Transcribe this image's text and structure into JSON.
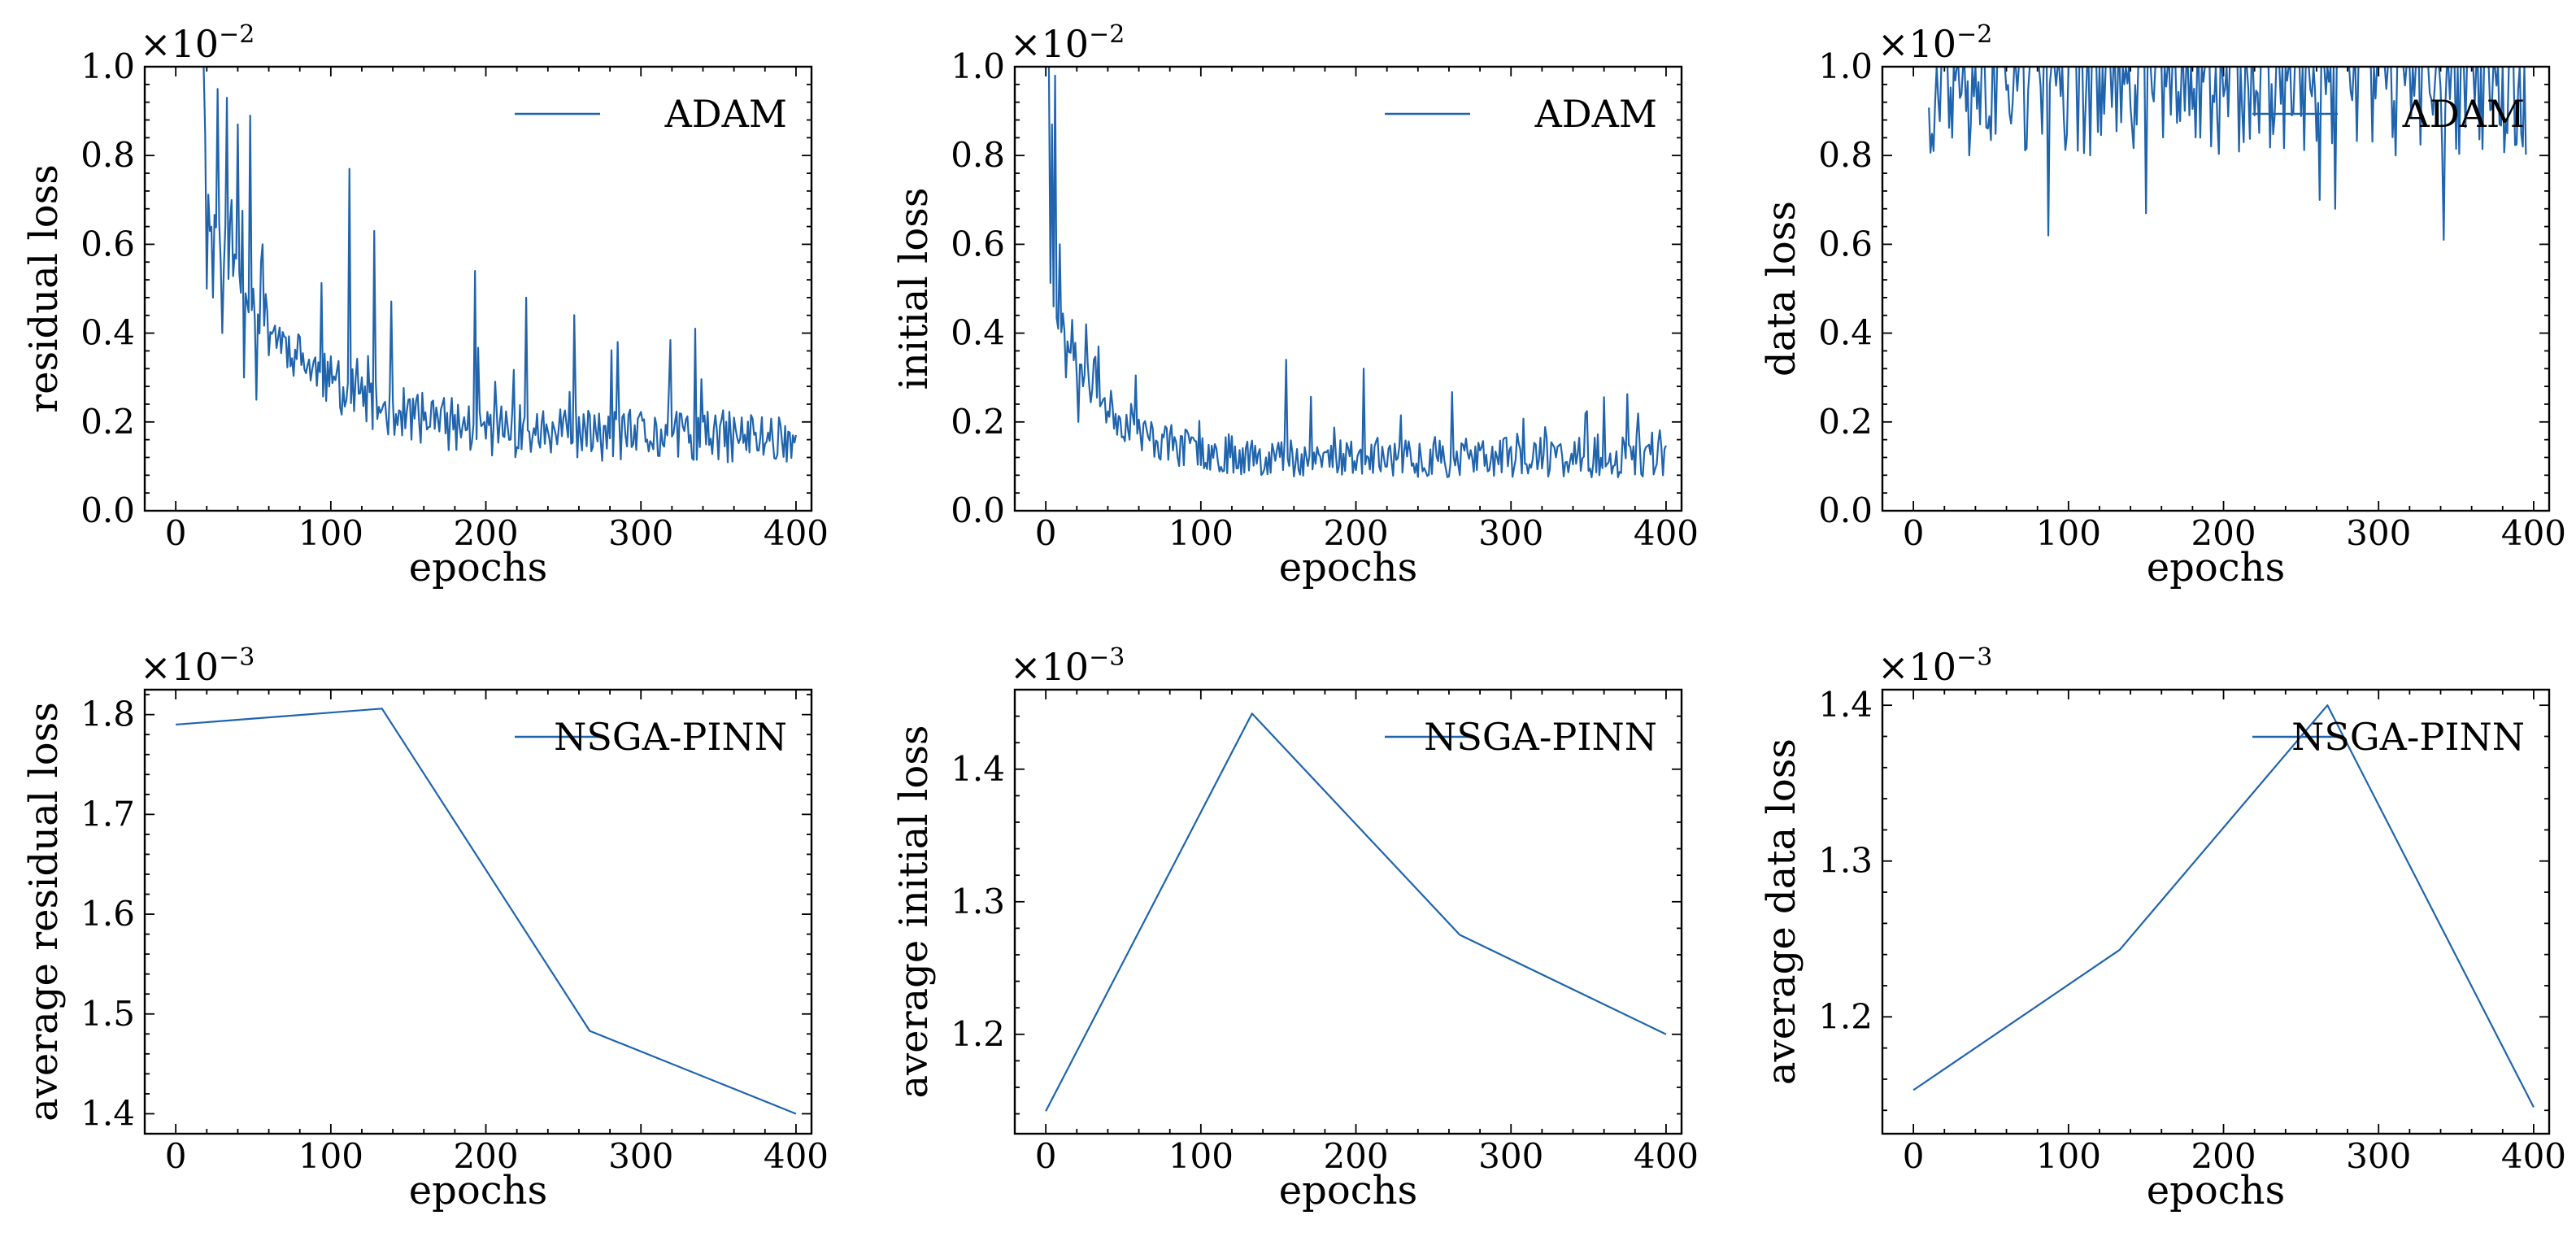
{
  "chart_data": [
    {
      "type": "line",
      "panel": "top-left",
      "xlabel": "epochs",
      "ylabel": "residual loss",
      "multiplier": {
        "base": "×10",
        "exp": "−2"
      },
      "xlim": [
        -20,
        410
      ],
      "ylim": [
        0.0,
        1.0
      ],
      "xticks": [
        0,
        100,
        200,
        300,
        400
      ],
      "yticks": [
        0.0,
        0.2,
        0.4,
        0.6,
        0.8,
        1.0
      ],
      "ytick_labels": [
        "0.0",
        "0.2",
        "0.4",
        "0.6",
        "0.8",
        "1.0"
      ],
      "legend": {
        "label": "ADAM",
        "loc": "upper-right"
      },
      "color": "#1f64ad",
      "series": {
        "name": "ADAM",
        "generator": "noisy-decay",
        "x_start": 18,
        "x_end": 400,
        "seed": 11,
        "baseline": 0.165,
        "amplitude": 0.55,
        "decay": 55,
        "noise": 0.06,
        "spike_rate": 0.08,
        "spike_size": 0.22,
        "y_min": 0.05,
        "y_max": 1.0,
        "overrides": [
          [
            18,
            1.0
          ],
          [
            20,
            0.5
          ],
          [
            22,
            0.63
          ],
          [
            24,
            0.48
          ],
          [
            27,
            0.95
          ],
          [
            30,
            0.4
          ],
          [
            33,
            0.93
          ],
          [
            36,
            0.7
          ],
          [
            40,
            0.87
          ],
          [
            44,
            0.3
          ],
          [
            48,
            0.89
          ],
          [
            52,
            0.25
          ],
          [
            56,
            0.6
          ],
          [
            60,
            0.35
          ],
          [
            112,
            0.77
          ],
          [
            128,
            0.63
          ],
          [
            193,
            0.54
          ],
          [
            226,
            0.48
          ],
          [
            285,
            0.38
          ],
          [
            335,
            0.41
          ]
        ]
      }
    },
    {
      "type": "line",
      "panel": "top-middle",
      "xlabel": "epochs",
      "ylabel": "initial loss",
      "multiplier": {
        "base": "×10",
        "exp": "−2"
      },
      "xlim": [
        -20,
        410
      ],
      "ylim": [
        0.0,
        1.0
      ],
      "xticks": [
        0,
        100,
        200,
        300,
        400
      ],
      "yticks": [
        0.0,
        0.2,
        0.4,
        0.6,
        0.8,
        1.0
      ],
      "ytick_labels": [
        "0.0",
        "0.2",
        "0.4",
        "0.6",
        "0.8",
        "1.0"
      ],
      "legend": {
        "label": "ADAM",
        "loc": "upper-right"
      },
      "color": "#1f64ad",
      "series": {
        "name": "ADAM",
        "generator": "noisy-decay",
        "x_start": 2,
        "x_end": 400,
        "seed": 23,
        "baseline": 0.12,
        "amplitude": 0.4,
        "decay": 30,
        "noise": 0.045,
        "spike_rate": 0.06,
        "spike_size": 0.12,
        "y_min": 0.03,
        "y_max": 1.0,
        "overrides": [
          [
            2,
            1.0
          ],
          [
            4,
            0.87
          ],
          [
            6,
            0.98
          ],
          [
            9,
            0.6
          ],
          [
            13,
            0.3
          ],
          [
            17,
            0.43
          ],
          [
            21,
            0.2
          ],
          [
            26,
            0.42
          ],
          [
            34,
            0.37
          ],
          [
            155,
            0.34
          ],
          [
            205,
            0.32
          ]
        ]
      }
    },
    {
      "type": "line",
      "panel": "top-right",
      "xlabel": "epochs",
      "ylabel": "data loss",
      "multiplier": {
        "base": "×10",
        "exp": "−2"
      },
      "xlim": [
        -20,
        410
      ],
      "ylim": [
        0.0,
        1.0
      ],
      "xticks": [
        0,
        100,
        200,
        300,
        400
      ],
      "yticks": [
        0.0,
        0.2,
        0.4,
        0.6,
        0.8,
        1.0
      ],
      "ytick_labels": [
        "0.0",
        "0.2",
        "0.4",
        "0.6",
        "0.8",
        "1.0"
      ],
      "legend": {
        "label": "ADAM",
        "loc": "upper-right"
      },
      "color": "#1f64ad",
      "series": {
        "name": "ADAM",
        "generator": "clipped-dips",
        "x_start": 10,
        "x_end": 395,
        "seed": 37,
        "dip_rate": 0.35,
        "dip_min": 0.8,
        "dip_max": 0.97,
        "y_min": 0.0,
        "y_max": 1.0,
        "overrides": [
          [
            13,
            0.81
          ],
          [
            25,
            0.84
          ],
          [
            43,
            0.87
          ],
          [
            87,
            0.62
          ],
          [
            114,
            0.8
          ],
          [
            150,
            0.67
          ],
          [
            185,
            0.84
          ],
          [
            213,
            0.83
          ],
          [
            262,
            0.7
          ],
          [
            272,
            0.68
          ],
          [
            311,
            0.8
          ],
          [
            342,
            0.61
          ],
          [
            383,
            0.85
          ],
          [
            393,
            0.82
          ]
        ]
      }
    },
    {
      "type": "line",
      "panel": "bottom-left",
      "xlabel": "epochs",
      "ylabel": "average residual loss",
      "multiplier": {
        "base": "×10",
        "exp": "−3"
      },
      "xlim": [
        -20,
        410
      ],
      "ylim": [
        1.38,
        1.825
      ],
      "xticks": [
        0,
        100,
        200,
        300,
        400
      ],
      "yticks": [
        1.4,
        1.5,
        1.6,
        1.7,
        1.8
      ],
      "ytick_labels": [
        "1.4",
        "1.5",
        "1.6",
        "1.7",
        "1.8"
      ],
      "legend": {
        "label": "NSGA-PINN",
        "loc": "upper-right"
      },
      "color": "#1f64ad",
      "series": {
        "name": "NSGA-PINN",
        "x": [
          0,
          133,
          267,
          400
        ],
        "y": [
          1.79,
          1.806,
          1.483,
          1.4
        ]
      }
    },
    {
      "type": "line",
      "panel": "bottom-middle",
      "xlabel": "epochs",
      "ylabel": "average initial loss",
      "multiplier": {
        "base": "×10",
        "exp": "−3"
      },
      "xlim": [
        -20,
        410
      ],
      "ylim": [
        1.125,
        1.46
      ],
      "xticks": [
        0,
        100,
        200,
        300,
        400
      ],
      "yticks": [
        1.2,
        1.3,
        1.4
      ],
      "ytick_labels": [
        "1.2",
        "1.3",
        "1.4"
      ],
      "legend": {
        "label": "NSGA-PINN",
        "loc": "upper-right"
      },
      "color": "#1f64ad",
      "series": {
        "name": "NSGA-PINN",
        "x": [
          0,
          133,
          267,
          400
        ],
        "y": [
          1.142,
          1.442,
          1.275,
          1.2
        ]
      }
    },
    {
      "type": "line",
      "panel": "bottom-right",
      "xlabel": "epochs",
      "ylabel": "average data loss",
      "multiplier": {
        "base": "×10",
        "exp": "−3"
      },
      "xlim": [
        -20,
        410
      ],
      "ylim": [
        1.125,
        1.41
      ],
      "xticks": [
        0,
        100,
        200,
        300,
        400
      ],
      "yticks": [
        1.2,
        1.3,
        1.4
      ],
      "ytick_labels": [
        "1.2",
        "1.3",
        "1.4"
      ],
      "legend": {
        "label": "NSGA-PINN",
        "loc": "upper-right"
      },
      "color": "#1f64ad",
      "series": {
        "name": "NSGA-PINN",
        "x": [
          0,
          133,
          267,
          400
        ],
        "y": [
          1.153,
          1.243,
          1.4,
          1.142
        ]
      }
    }
  ]
}
